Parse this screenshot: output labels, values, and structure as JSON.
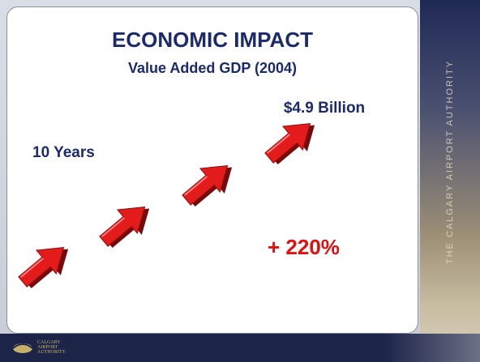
{
  "slide": {
    "title": "ECONOMIC IMPACT",
    "subtitle": "Value Added GDP (2004)",
    "amount": "$4.9 Billion",
    "period": "10 Years",
    "growth": "+ 220%"
  },
  "sidebar": {
    "text": "THE CALGARY AIRPORT AUTHORITY"
  },
  "footer": {
    "logo_lines": [
      "CALGARY",
      "AIRPORT",
      "AUTHORITY"
    ]
  }
}
